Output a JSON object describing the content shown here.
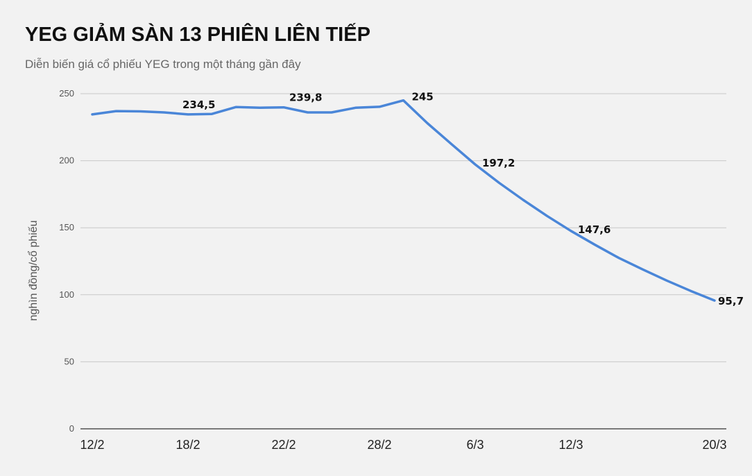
{
  "chart_data": {
    "type": "line",
    "title": "YEG GIẢM SÀN 13 PHIÊN LIÊN TIẾP",
    "subtitle": "Diễn biến giá cổ phiếu YEG trong một tháng gần đây",
    "ylabel": "nghìn đồng/cổ phiếu",
    "xlabel": "",
    "ylim": [
      0,
      250
    ],
    "yticks": [
      "0",
      "50",
      "100",
      "150",
      "200",
      "250"
    ],
    "xticks": [
      "12/2",
      "18/2",
      "22/2",
      "28/2",
      "6/3",
      "12/3",
      "20/3"
    ],
    "grid": true,
    "legend": "none",
    "line_color": "#4a86d8",
    "series": [
      {
        "values": [
          234.5,
          237.0,
          236.8,
          236.0,
          234.5,
          234.9,
          240.0,
          239.5,
          239.8,
          236.0,
          236.0,
          239.5,
          240.2,
          245.0,
          228.0,
          212.5,
          197.2,
          183.5,
          170.8,
          158.8,
          147.6,
          137.3,
          127.5,
          118.9,
          110.6,
          102.9,
          95.7
        ]
      }
    ],
    "data_labels": [
      {
        "index": 4,
        "text": "234,5"
      },
      {
        "index": 8,
        "text": "239,8"
      },
      {
        "index": 13,
        "text": "245"
      },
      {
        "index": 16,
        "text": "197,2"
      },
      {
        "index": 20,
        "text": "147,6"
      },
      {
        "index": 26,
        "text": "95,7"
      }
    ]
  }
}
